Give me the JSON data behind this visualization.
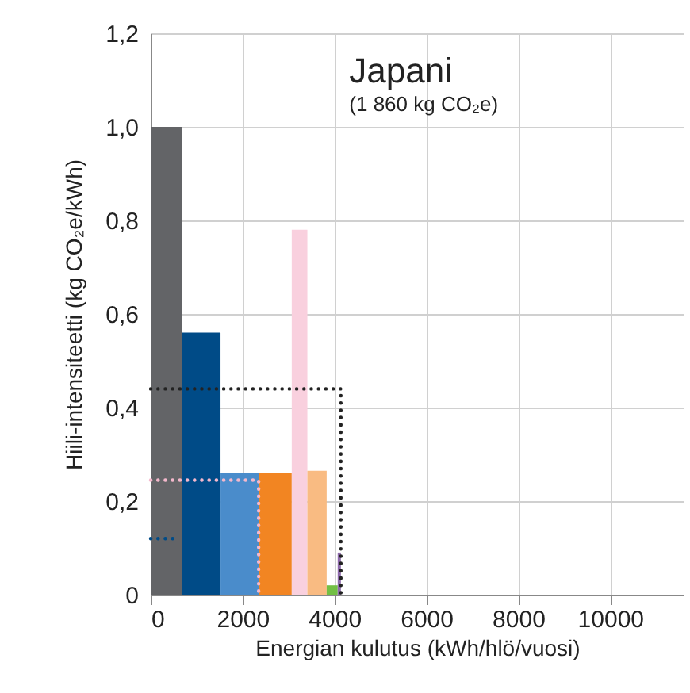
{
  "chart_data": {
    "type": "histogram",
    "title": "Japani",
    "subtitle": "(1 860 kg CO₂e)",
    "xlabel": "Energian kulutus (kWh/hlö/vuosi)",
    "ylabel": "Hiili-intensiteetti (kg CO₂e/kWh)",
    "bins": [
      0,
      690,
      1520,
      2350,
      3070,
      3410,
      3830,
      4070,
      4140
    ],
    "values": [
      1.0,
      0.56,
      0.26,
      0.26,
      0.78,
      0.265,
      0.02,
      0.09
    ],
    "colors": [
      "#636467",
      "#004b87",
      "#4a8ccb",
      "#f28522",
      "#f9d0de",
      "#f9bb82",
      "#72bf44",
      "#8e6bab"
    ],
    "series": [
      {
        "type": "line",
        "color": "#222222",
        "line_style": "dotted",
        "x": [
          0,
          4140,
          4140
        ],
        "values": [
          0.44,
          0.44,
          0
        ]
      },
      {
        "type": "line",
        "color": "#f4b8cc",
        "line_style": "dotted",
        "x": [
          0,
          2350,
          2350
        ],
        "values": [
          0.245,
          0.245,
          0
        ]
      },
      {
        "type": "line",
        "color": "#004b87",
        "line_style": "dotted",
        "x": [
          0,
          620
        ],
        "values": [
          0.12,
          0.12
        ]
      }
    ],
    "xlim": [
      0,
      11600
    ],
    "xticks": [
      0,
      2000,
      4000,
      6000,
      8000,
      10000
    ],
    "ylim": [
      0,
      1.2
    ],
    "yticks": [
      0,
      {
        "value": 0.2,
        "label": "0,2"
      },
      {
        "value": 0.4,
        "label": "0,4"
      },
      {
        "value": 0.6,
        "label": "0,6"
      },
      {
        "value": 0.8,
        "label": "0,8"
      },
      {
        "value": 1.0,
        "label": "1,0"
      },
      {
        "value": 1.2,
        "label": "1,2"
      }
    ],
    "grid": true
  }
}
